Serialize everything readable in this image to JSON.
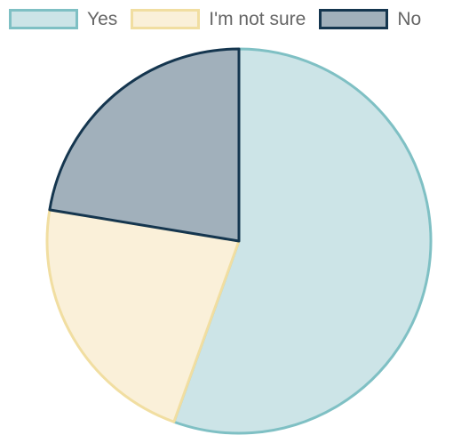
{
  "chart_data": {
    "type": "pie",
    "labels": [
      "Yes",
      "I'm not sure",
      "No"
    ],
    "values": [
      55.5,
      22.1,
      22.4
    ],
    "unit": "%",
    "start_angle_deg": 0,
    "direction": "clockwise",
    "legend_position": "top",
    "colors": {
      "fill": [
        "#cce4e7",
        "#faf0d9",
        "#a1b0bb"
      ],
      "border": [
        "#7fc0c4",
        "#f1dea1",
        "#15364f"
      ]
    }
  }
}
